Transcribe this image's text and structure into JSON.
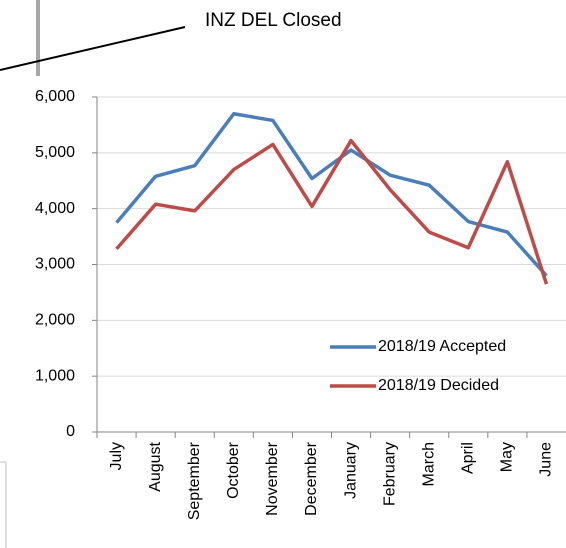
{
  "chart_data": {
    "type": "line",
    "annotation": "INZ DEL Closed",
    "categories": [
      "July",
      "August",
      "September",
      "October",
      "November",
      "December",
      "January",
      "February",
      "March",
      "April",
      "May",
      "June"
    ],
    "series": [
      {
        "name": "2018/19 Accepted",
        "color": "#4a7ebb",
        "values": [
          3750,
          4580,
          4770,
          5700,
          5580,
          4540,
          5050,
          4600,
          4420,
          3770,
          3580,
          2800
        ]
      },
      {
        "name": "2018/19 Decided",
        "color": "#be4b48",
        "values": [
          3280,
          4080,
          3960,
          4700,
          5150,
          4040,
          5220,
          4340,
          3580,
          3300,
          4840,
          2650
        ]
      }
    ],
    "ylim": [
      0,
      6000
    ],
    "yticks": [
      0,
      {
        "value": 1000,
        "label": "1,000"
      },
      {
        "value": 2000,
        "label": "2,000"
      },
      {
        "value": 3000,
        "label": "3,000"
      },
      {
        "value": 4000,
        "label": "4,000"
      },
      {
        "value": 5000,
        "label": "5,000"
      },
      {
        "value": 6000,
        "label": "6,000"
      }
    ],
    "grid": true,
    "legend": "right"
  }
}
